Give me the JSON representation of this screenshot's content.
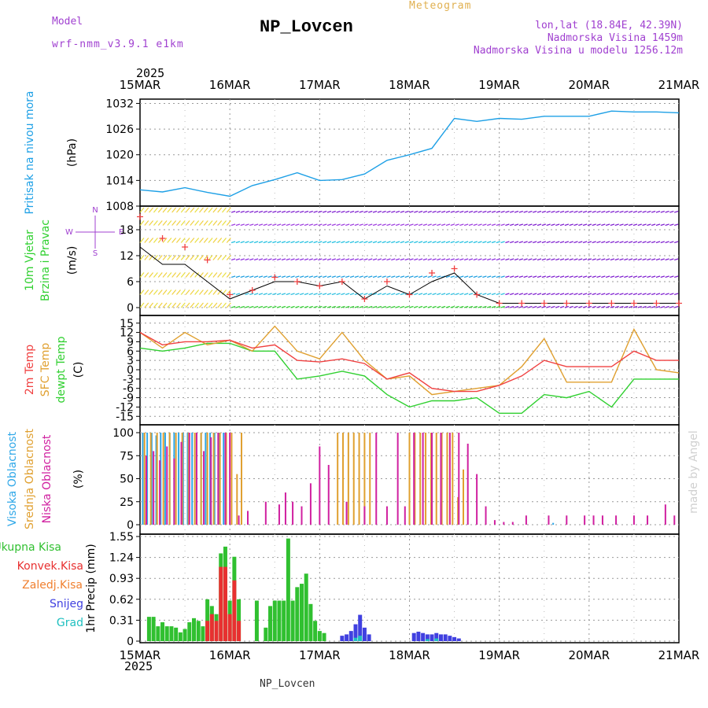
{
  "header": {
    "model_label": "Model",
    "model_name": "wrf-nmm_v3.9.1 e1km",
    "title": "NP_Lovcen",
    "meteogram_label": "Meteogram",
    "lonlat": "lon,lat (18.84E, 42.39N)",
    "altitude": "Nadmorska Visina 1459m",
    "model_altitude": "Nadmorska Visina u modelu 1256.12m",
    "footer_title": "NP_Lovcen",
    "made_by": "made by Angel",
    "year_top": "2025",
    "year_bottom": "2025"
  },
  "colors": {
    "pressure": "#1ea0e6",
    "temp2m": "#f04040",
    "sfc_temp": "#e0a030",
    "dewpt": "#30d030",
    "high_cloud": "#30a8e8",
    "mid_cloud": "#e0a030",
    "low_cloud": "#d020a0",
    "total_precip": "#30c030",
    "conv_precip": "#e83030",
    "freezing": "#f08030",
    "snow": "#4040e0",
    "hail": "#20c0c0"
  },
  "chart_data": [
    {
      "type": "line",
      "panel": "pressure",
      "x_tick_labels": [
        "15MAR",
        "16MAR",
        "17MAR",
        "18MAR",
        "19MAR",
        "20MAR",
        "21MAR"
      ],
      "ylabel_lines": [
        "Pritisak na nivou mora",
        "(hPa)"
      ],
      "yticks": [
        "1008",
        "1014",
        "1020",
        "1026",
        "1032"
      ],
      "ylim": [
        1008,
        1033
      ],
      "grid": true,
      "x": [
        0,
        0.25,
        0.5,
        0.75,
        1,
        1.25,
        1.5,
        1.75,
        2,
        2.25,
        2.5,
        2.75,
        3,
        3.25,
        3.5,
        3.75,
        4,
        4.25,
        4.5,
        4.75,
        5,
        5.25,
        5.5,
        5.75,
        6
      ],
      "series": [
        {
          "values": [
            1011.8,
            1011.3,
            1012.3,
            1011.2,
            1010.3,
            1012.8,
            1014.2,
            1015.8,
            1014.0,
            1014.2,
            1015.5,
            1018.7,
            1020.0,
            1021.5,
            1028.5,
            1027.8,
            1028.5,
            1028.3,
            1029.0,
            1029.0,
            1029.0,
            1030.2,
            1030.0,
            1030.0,
            1029.8
          ]
        }
      ]
    },
    {
      "type": "line",
      "panel": "wind",
      "ylabel_lines": [
        "10m Vjetar",
        "Brzina i Pravac",
        "(m/s)"
      ],
      "compass_labels": [
        "N",
        "W",
        "E",
        "S"
      ],
      "yticks": [
        "0",
        "6",
        "12",
        "18"
      ],
      "ylim": [
        -1.5,
        24
      ],
      "grid": true,
      "x": [
        0,
        0.25,
        0.5,
        0.75,
        1,
        1.25,
        1.5,
        1.75,
        2,
        2.25,
        2.5,
        2.75,
        3,
        3.25,
        3.5,
        3.75,
        4,
        4.25,
        4.5,
        4.75,
        5,
        5.25,
        5.5,
        5.75,
        6
      ],
      "series": [
        {
          "name": "speed",
          "values": [
            14,
            10,
            10,
            6,
            2,
            4,
            6,
            6,
            5,
            6,
            2,
            5,
            3,
            6,
            8,
            3,
            1,
            1,
            1,
            1,
            1,
            1,
            1,
            1,
            1
          ]
        },
        {
          "name": "gust",
          "values": [
            21,
            16,
            14,
            11,
            3,
            4,
            7,
            6,
            5,
            6,
            2,
            6,
            3,
            8,
            9,
            3,
            1,
            1,
            1,
            1,
            1,
            1,
            1,
            1,
            1
          ]
        }
      ]
    },
    {
      "type": "line",
      "panel": "temperature",
      "ylabel_lines": [
        "2m Temp",
        "SFC Temp",
        "dewpt Temp",
        "(C)"
      ],
      "yticks": [
        "15",
        "12",
        "9",
        "6",
        "3",
        "0",
        "-3",
        "-6",
        "-9",
        "-12",
        "-15"
      ],
      "ylim": [
        -16.5,
        16.5
      ],
      "grid": true,
      "x": [
        0,
        0.25,
        0.5,
        0.75,
        1,
        1.25,
        1.5,
        1.75,
        2,
        2.25,
        2.5,
        2.75,
        3,
        3.25,
        3.5,
        3.75,
        4,
        4.25,
        4.5,
        4.75,
        5,
        5.25,
        5.5,
        5.75,
        6
      ],
      "series": [
        {
          "name": "2m Temp",
          "values": [
            12,
            8,
            9,
            9,
            9.5,
            7,
            8,
            3,
            2.5,
            3.5,
            2,
            -3,
            -1,
            -6,
            -7,
            -7,
            -5,
            -2,
            3,
            1,
            1,
            1,
            6,
            3,
            3
          ]
        },
        {
          "name": "SFC Temp",
          "values": [
            12,
            7,
            12,
            8,
            9.5,
            6,
            14,
            6,
            3.5,
            12,
            3,
            -3,
            -2,
            -8,
            -7,
            -6,
            -5,
            1,
            10,
            -4,
            -4,
            -4,
            13,
            0,
            -1
          ]
        },
        {
          "name": "dewpt Temp",
          "values": [
            7,
            6,
            7,
            8.5,
            8.5,
            6,
            6,
            -3,
            -2,
            -0.5,
            -2,
            -8,
            -12,
            -10,
            -10,
            -9,
            -14,
            -14,
            -8,
            -9,
            -7,
            -12,
            -3,
            -3,
            -3
          ]
        }
      ]
    },
    {
      "type": "bar",
      "panel": "clouds",
      "ylabel_lines": [
        "Visoka Oblacnost",
        "Srednja Oblacnost",
        "Niska Oblacnost",
        "(%)"
      ],
      "yticks": [
        "0",
        "25",
        "50",
        "75",
        "100"
      ],
      "ylim": [
        0,
        100
      ],
      "grid": true,
      "series": [
        {
          "name": "Visoka Oblacnost",
          "x": [
            0.03,
            0.08,
            0.13,
            0.18,
            0.23,
            0.28,
            0.33,
            0.38,
            0.43,
            0.48,
            0.53,
            0.58,
            0.63,
            0.68,
            0.73,
            0.78,
            0.83,
            0.88,
            0.93,
            1.2,
            4.6,
            5.3
          ],
          "values": [
            100,
            100,
            100,
            97,
            100,
            100,
            100,
            100,
            100,
            100,
            100,
            100,
            100,
            100,
            100,
            100,
            100,
            100,
            100,
            5,
            2,
            2
          ]
        },
        {
          "name": "Srednja Oblacnost",
          "x": [
            0.05,
            0.12,
            0.19,
            0.26,
            0.33,
            0.4,
            0.47,
            0.54,
            0.61,
            0.68,
            0.75,
            0.82,
            0.89,
            0.96,
            1.02,
            1.08,
            1.13,
            2.2,
            2.26,
            2.32,
            2.38,
            2.44,
            2.5,
            2.56,
            3.0,
            3.06,
            3.12,
            3.18,
            3.24,
            3.3,
            3.36,
            3.42,
            3.48,
            3.54,
            3.6
          ],
          "values": [
            100,
            100,
            100,
            100,
            100,
            100,
            100,
            100,
            100,
            100,
            100,
            100,
            100,
            100,
            100,
            55,
            100,
            100,
            100,
            100,
            100,
            100,
            100,
            100,
            100,
            100,
            100,
            100,
            100,
            100,
            100,
            100,
            100,
            30,
            60
          ]
        },
        {
          "name": "Niska Oblacnost",
          "x": [
            0.07,
            0.15,
            0.22,
            0.3,
            0.38,
            0.46,
            0.55,
            0.63,
            0.71,
            0.79,
            0.87,
            0.95,
            1.0,
            1.1,
            1.2,
            1.4,
            1.55,
            1.62,
            1.7,
            1.8,
            1.9,
            2.0,
            2.1,
            2.3,
            2.5,
            2.63,
            2.75,
            2.87,
            2.95,
            3.05,
            3.15,
            3.25,
            3.35,
            3.45,
            3.55,
            3.65,
            3.75,
            3.85,
            3.95,
            4.05,
            4.15,
            4.3,
            4.55,
            4.75,
            4.95,
            5.05,
            5.15,
            5.3,
            5.5,
            5.65,
            5.85,
            5.95
          ],
          "values": [
            75,
            80,
            70,
            85,
            72,
            90,
            100,
            100,
            80,
            95,
            100,
            100,
            100,
            10,
            15,
            25,
            22,
            35,
            25,
            20,
            45,
            85,
            65,
            25,
            20,
            100,
            20,
            100,
            20,
            100,
            100,
            100,
            100,
            100,
            100,
            88,
            55,
            20,
            5,
            3,
            3,
            10,
            10,
            10,
            10,
            10,
            10,
            10,
            10,
            10,
            22,
            10
          ]
        }
      ]
    },
    {
      "type": "bar",
      "panel": "precipitation",
      "ylabel_lines": [
        "1hr Precip",
        "(mm)"
      ],
      "legend": [
        "Ukupna Kisa",
        "Konvek.Kisa",
        "Zaledj.Kisa",
        "Snijeg",
        "Grad"
      ],
      "yticks": [
        "0",
        "0.31",
        "0.62",
        "0.93",
        "1.24",
        "1.55"
      ],
      "ylim": [
        0,
        1.55
      ],
      "grid": true,
      "series": [
        {
          "name": "Ukupna Kisa",
          "x": [
            0.1,
            0.15,
            0.2,
            0.25,
            0.3,
            0.35,
            0.4,
            0.45,
            0.5,
            0.55,
            0.6,
            0.65,
            0.7,
            0.75,
            0.8,
            0.85,
            0.9,
            0.95,
            1.0,
            1.05,
            1.1,
            1.3,
            1.4,
            1.45,
            1.5,
            1.55,
            1.6,
            1.65,
            1.7,
            1.75,
            1.8,
            1.85,
            1.9,
            1.95,
            2.0,
            2.05
          ],
          "values": [
            0.36,
            0.36,
            0.22,
            0.28,
            0.22,
            0.22,
            0.2,
            0.13,
            0.18,
            0.28,
            0.34,
            0.3,
            0.22,
            0.62,
            0.52,
            0.4,
            1.3,
            1.4,
            0.6,
            1.25,
            0.62,
            0.6,
            0.2,
            0.52,
            0.6,
            0.6,
            0.6,
            1.52,
            0.6,
            0.8,
            0.85,
            1.0,
            0.55,
            0.3,
            0.15,
            0.12
          ]
        },
        {
          "name": "Konvek.Kisa",
          "x": [
            0.75,
            0.8,
            0.85,
            0.9,
            0.95,
            1.0,
            1.05,
            1.1
          ],
          "values": [
            0.3,
            0.4,
            0.3,
            1.1,
            1.1,
            0.4,
            0.9,
            0.3
          ]
        },
        {
          "name": "Snijeg",
          "x": [
            2.25,
            2.3,
            2.35,
            2.4,
            2.45,
            2.5,
            2.55,
            3.05,
            3.1,
            3.15,
            3.2,
            3.25,
            3.3,
            3.35,
            3.4,
            3.45,
            3.5,
            3.55
          ],
          "values": [
            0.08,
            0.1,
            0.15,
            0.25,
            0.39,
            0.2,
            0.1,
            0.12,
            0.14,
            0.12,
            0.1,
            0.1,
            0.12,
            0.1,
            0.1,
            0.08,
            0.06,
            0.04
          ]
        },
        {
          "name": "Grad",
          "x": [
            2.4,
            2.45,
            3.2,
            3.3
          ],
          "values": [
            0.05,
            0.08,
            0.03,
            0.04
          ]
        }
      ]
    }
  ]
}
